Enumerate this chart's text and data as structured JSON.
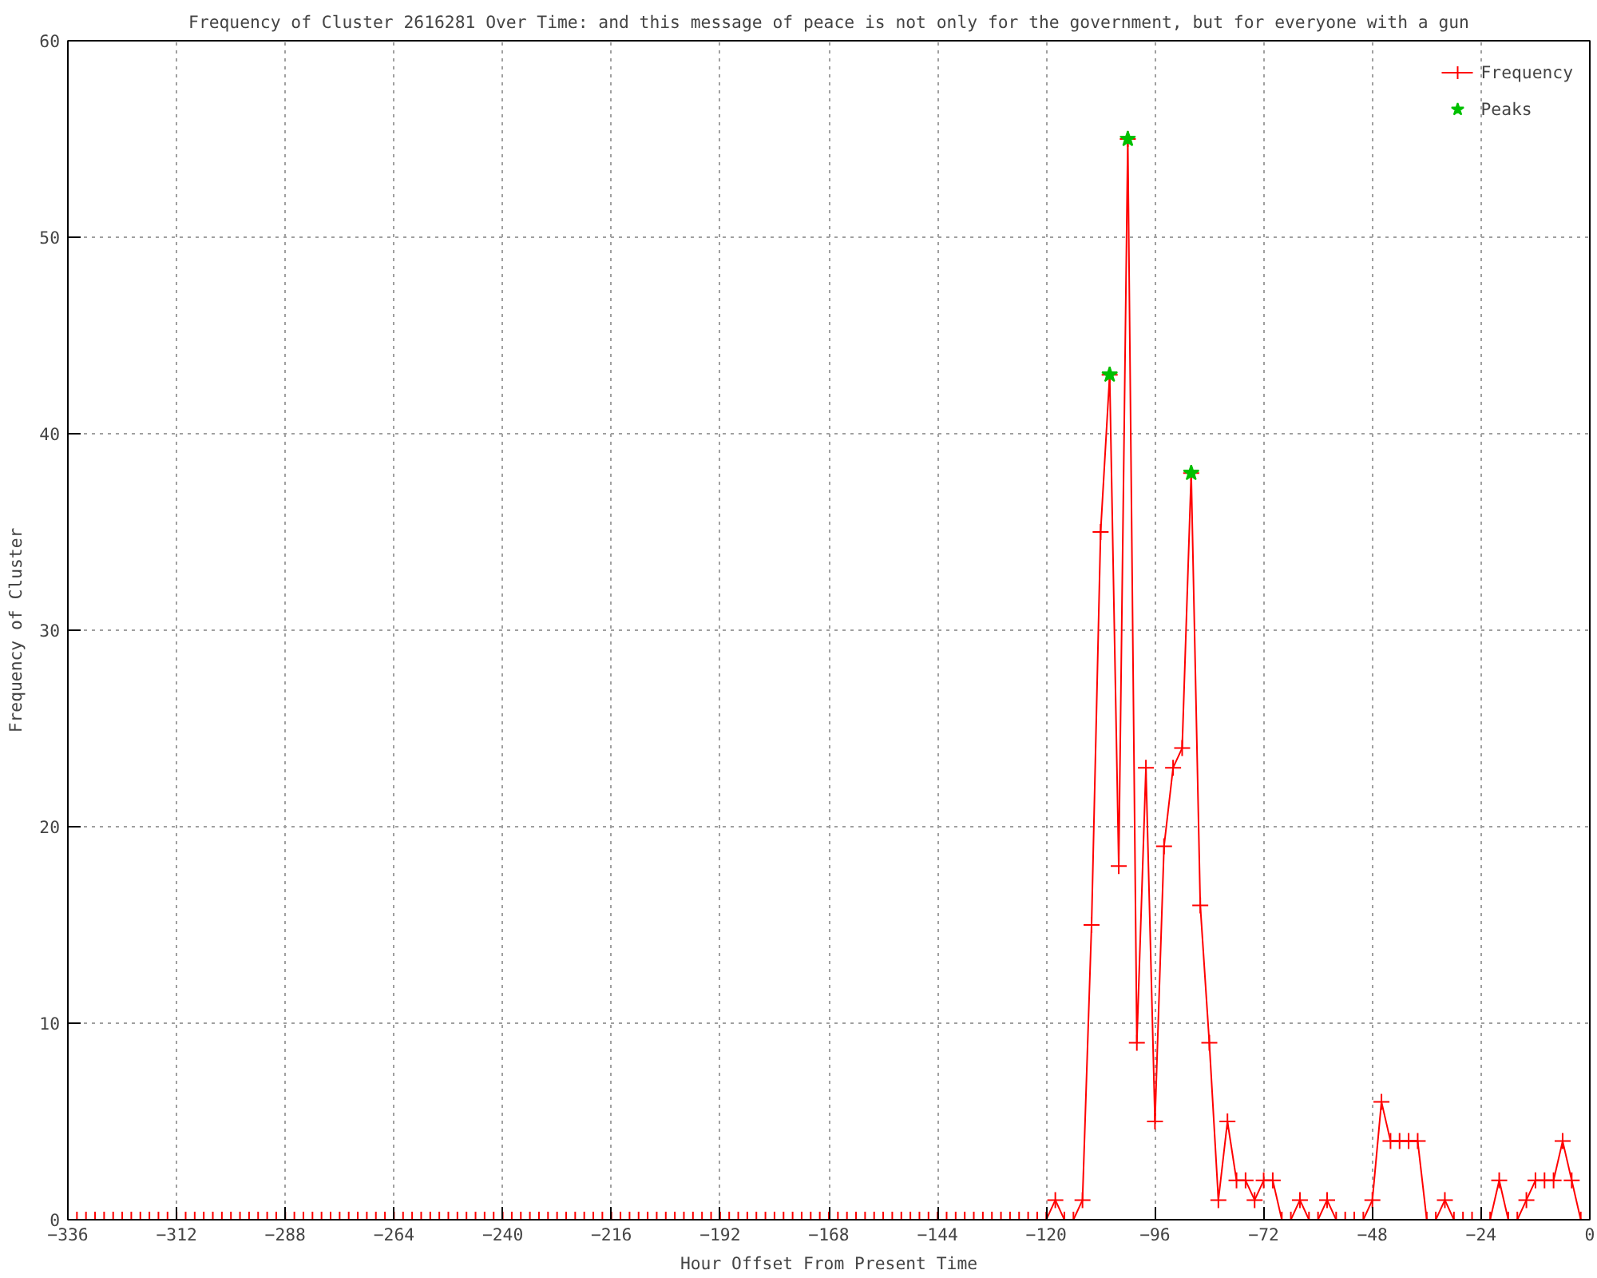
{
  "chart_data": {
    "type": "line",
    "title": "Frequency of Cluster 2616281 Over Time: and this message of peace is not only for the government, but for everyone with a gun",
    "xlabel": "Hour Offset From Present Time",
    "ylabel": "Frequency of Cluster",
    "x": [
      -336,
      -334,
      -332,
      -330,
      -328,
      -326,
      -324,
      -322,
      -320,
      -318,
      -316,
      -314,
      -312,
      -310,
      -308,
      -306,
      -304,
      -302,
      -300,
      -298,
      -296,
      -294,
      -292,
      -290,
      -288,
      -286,
      -284,
      -282,
      -280,
      -278,
      -276,
      -274,
      -272,
      -270,
      -268,
      -266,
      -264,
      -262,
      -260,
      -258,
      -256,
      -254,
      -252,
      -250,
      -248,
      -246,
      -244,
      -242,
      -240,
      -238,
      -236,
      -234,
      -232,
      -230,
      -228,
      -226,
      -224,
      -222,
      -220,
      -218,
      -216,
      -214,
      -212,
      -210,
      -208,
      -206,
      -204,
      -202,
      -200,
      -198,
      -196,
      -194,
      -192,
      -190,
      -188,
      -186,
      -184,
      -182,
      -180,
      -178,
      -176,
      -174,
      -172,
      -170,
      -168,
      -166,
      -164,
      -162,
      -160,
      -158,
      -156,
      -154,
      -152,
      -150,
      -148,
      -146,
      -144,
      -142,
      -140,
      -138,
      -136,
      -134,
      -132,
      -130,
      -128,
      -126,
      -124,
      -122,
      -120,
      -118,
      -116,
      -114,
      -112,
      -110,
      -108,
      -106,
      -104,
      -102,
      -100,
      -98,
      -96,
      -94,
      -92,
      -90,
      -88,
      -86,
      -84,
      -82,
      -80,
      -78,
      -76,
      -74,
      -72,
      -70,
      -68,
      -66,
      -64,
      -62,
      -60,
      -58,
      -56,
      -54,
      -52,
      -50,
      -48,
      -46,
      -44,
      -42,
      -40,
      -38,
      -36,
      -34,
      -32,
      -30,
      -28,
      -26,
      -24,
      -22,
      -20,
      -18,
      -16,
      -14,
      -12,
      -10,
      -8,
      -6,
      -4,
      -2,
      0
    ],
    "series": [
      {
        "name": "Frequency",
        "color": "#ff0000",
        "marker": "cross",
        "values": [
          0,
          0,
          0,
          0,
          0,
          0,
          0,
          0,
          0,
          0,
          0,
          0,
          0,
          0,
          0,
          0,
          0,
          0,
          0,
          0,
          0,
          0,
          0,
          0,
          0,
          0,
          0,
          0,
          0,
          0,
          0,
          0,
          0,
          0,
          0,
          0,
          0,
          0,
          0,
          0,
          0,
          0,
          0,
          0,
          0,
          0,
          0,
          0,
          0,
          0,
          0,
          0,
          0,
          0,
          0,
          0,
          0,
          0,
          0,
          0,
          0,
          0,
          0,
          0,
          0,
          0,
          0,
          0,
          0,
          0,
          0,
          0,
          0,
          0,
          0,
          0,
          0,
          0,
          0,
          0,
          0,
          0,
          0,
          0,
          0,
          0,
          0,
          0,
          0,
          0,
          0,
          0,
          0,
          0,
          0,
          0,
          0,
          0,
          0,
          0,
          0,
          0,
          0,
          0,
          0,
          0,
          0,
          0,
          0,
          1,
          0,
          0,
          1,
          15,
          35,
          43,
          18,
          55,
          9,
          23,
          5,
          19,
          23,
          24,
          38,
          16,
          9,
          1,
          5,
          2,
          2,
          1,
          2,
          2,
          0,
          0,
          1,
          0,
          0,
          1,
          0,
          0,
          0,
          0,
          1,
          6,
          4,
          4,
          4,
          4,
          0,
          0,
          1,
          0,
          0,
          0,
          0,
          0,
          2,
          0,
          0,
          1,
          2,
          2,
          2,
          4,
          2,
          0,
          0
        ]
      },
      {
        "name": "Peaks",
        "type": "scatter",
        "color": "#00c000",
        "marker": "star",
        "x": [
          -106,
          -102,
          -88
        ],
        "values": [
          43,
          55,
          38
        ]
      }
    ],
    "xlim": [
      -336,
      0
    ],
    "xticks": [
      -336,
      -312,
      -288,
      -264,
      -240,
      -216,
      -192,
      -168,
      -144,
      -120,
      -96,
      -72,
      -48,
      -24,
      0
    ],
    "ylim": [
      0,
      60
    ],
    "yticks": [
      0,
      10,
      20,
      30,
      40,
      50,
      60
    ],
    "grid": true,
    "legend": "top right"
  }
}
